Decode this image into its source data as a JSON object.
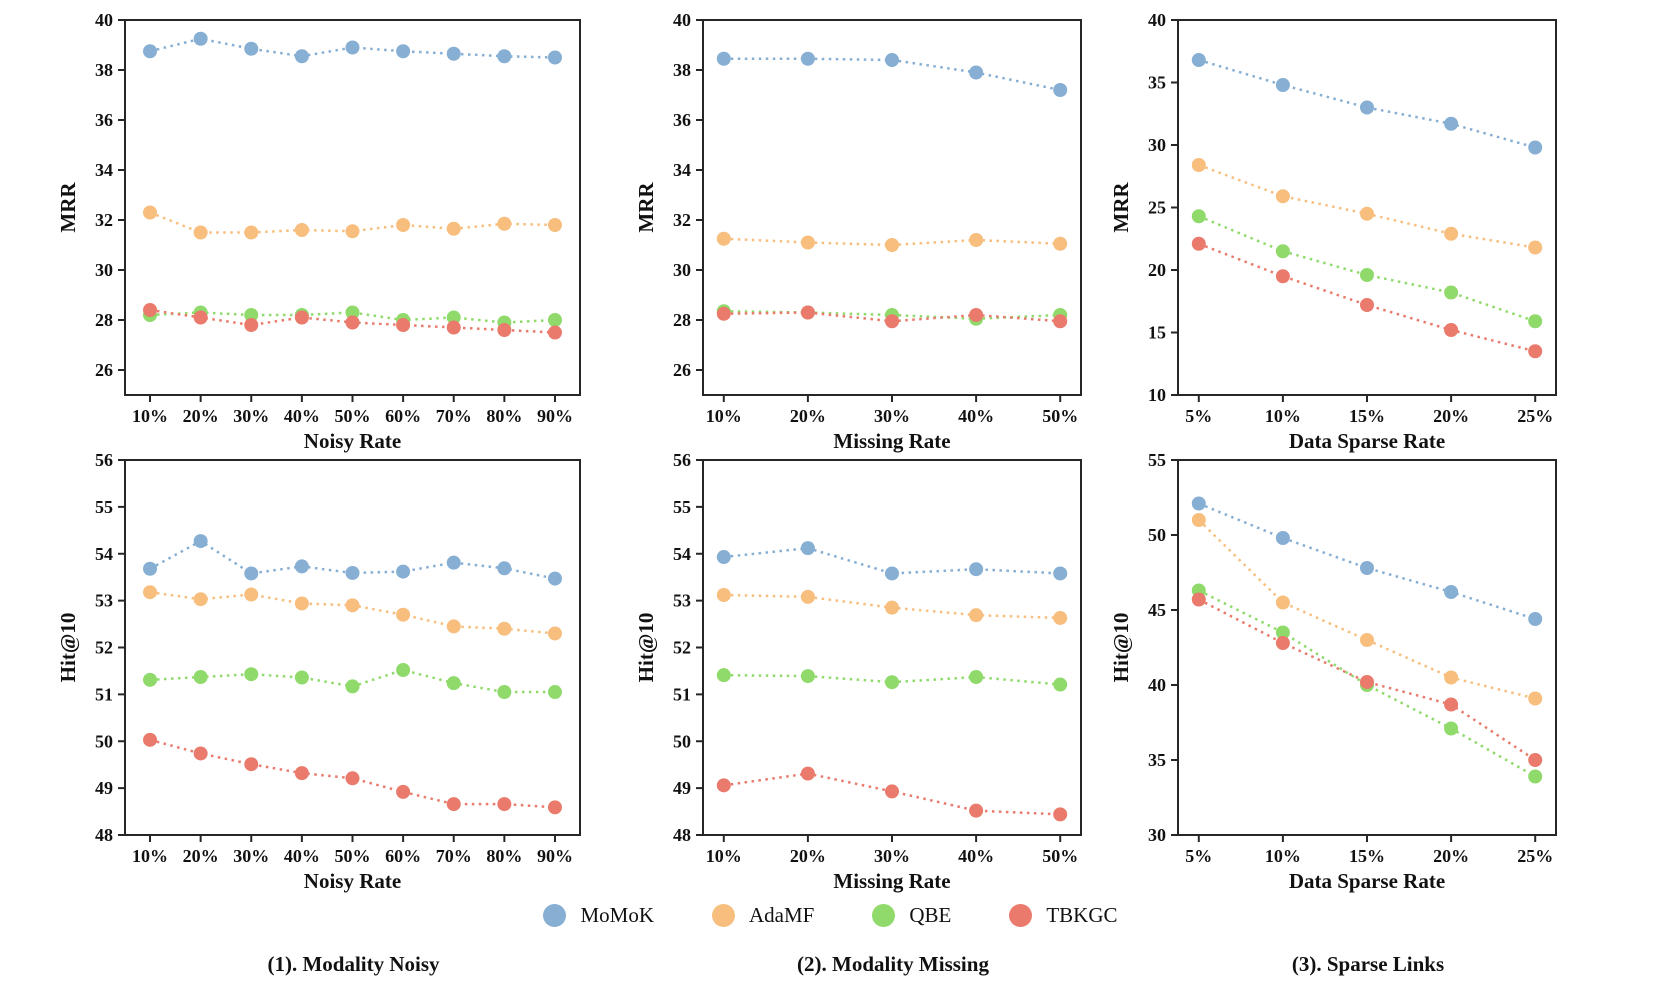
{
  "colors": {
    "MoMoK": "#87AED3",
    "AdaMF": "#F7BE7E",
    "QBE": "#8FDA6B",
    "TBKGC": "#E97A6C"
  },
  "legend": {
    "items": [
      {
        "label": "MoMoK"
      },
      {
        "label": "AdaMF"
      },
      {
        "label": "QBE"
      },
      {
        "label": "TBKGC"
      }
    ]
  },
  "captions": [
    "(1). Modality Noisy",
    "(2). Modality Missing",
    "(3). Sparse Links"
  ],
  "chart_data": [
    {
      "type": "line",
      "xlabel": "Noisy Rate",
      "ylabel": "MRR",
      "x": [
        "10%",
        "20%",
        "30%",
        "40%",
        "50%",
        "60%",
        "70%",
        "80%",
        "90%"
      ],
      "ylim": [
        25,
        40
      ],
      "yticks": [
        26,
        28,
        30,
        32,
        34,
        36,
        38,
        40
      ],
      "grid": false,
      "series": [
        {
          "name": "MoMoK",
          "values": [
            38.75,
            39.25,
            38.85,
            38.55,
            38.9,
            38.75,
            38.65,
            38.55,
            38.5
          ]
        },
        {
          "name": "AdaMF",
          "values": [
            32.3,
            31.5,
            31.5,
            31.6,
            31.55,
            31.8,
            31.65,
            31.85,
            31.8
          ]
        },
        {
          "name": "QBE",
          "values": [
            28.2,
            28.3,
            28.2,
            28.2,
            28.3,
            28.0,
            28.1,
            27.9,
            28.0
          ]
        },
        {
          "name": "TBKGC",
          "values": [
            28.4,
            28.1,
            27.8,
            28.1,
            27.9,
            27.8,
            27.7,
            27.6,
            27.5
          ]
        }
      ]
    },
    {
      "type": "line",
      "xlabel": "Missing Rate",
      "ylabel": "MRR",
      "x": [
        "10%",
        "20%",
        "30%",
        "40%",
        "50%"
      ],
      "ylim": [
        25,
        40
      ],
      "yticks": [
        26,
        28,
        30,
        32,
        34,
        36,
        38,
        40
      ],
      "grid": false,
      "series": [
        {
          "name": "MoMoK",
          "values": [
            38.45,
            38.45,
            38.4,
            37.9,
            37.2
          ]
        },
        {
          "name": "AdaMF",
          "values": [
            31.25,
            31.1,
            31.0,
            31.2,
            31.05
          ]
        },
        {
          "name": "QBE",
          "values": [
            28.35,
            28.3,
            28.2,
            28.05,
            28.2
          ]
        },
        {
          "name": "TBKGC",
          "values": [
            28.25,
            28.3,
            27.95,
            28.2,
            27.95
          ]
        }
      ]
    },
    {
      "type": "line",
      "xlabel": "Data Sparse Rate",
      "ylabel": "MRR",
      "x": [
        "5%",
        "10%",
        "15%",
        "20%",
        "25%"
      ],
      "ylim": [
        10,
        40
      ],
      "yticks": [
        10,
        15,
        20,
        25,
        30,
        35,
        40
      ],
      "grid": false,
      "series": [
        {
          "name": "MoMoK",
          "values": [
            36.8,
            34.8,
            33.0,
            31.7,
            29.8
          ]
        },
        {
          "name": "AdaMF",
          "values": [
            28.4,
            25.9,
            24.5,
            22.9,
            21.8
          ]
        },
        {
          "name": "QBE",
          "values": [
            24.3,
            21.5,
            19.6,
            18.2,
            15.9
          ]
        },
        {
          "name": "TBKGC",
          "values": [
            22.1,
            19.5,
            17.2,
            15.2,
            13.5
          ]
        }
      ]
    },
    {
      "type": "line",
      "xlabel": "Noisy Rate",
      "ylabel": "Hit@10",
      "x": [
        "10%",
        "20%",
        "30%",
        "40%",
        "50%",
        "60%",
        "70%",
        "80%",
        "90%"
      ],
      "ylim": [
        48,
        56
      ],
      "yticks": [
        48,
        49,
        50,
        51,
        52,
        53,
        54,
        55,
        56
      ],
      "grid": false,
      "series": [
        {
          "name": "MoMoK",
          "values": [
            53.68,
            54.27,
            53.58,
            53.73,
            53.59,
            53.62,
            53.81,
            53.69,
            53.47
          ]
        },
        {
          "name": "AdaMF",
          "values": [
            53.18,
            53.03,
            53.13,
            52.94,
            52.9,
            52.7,
            52.45,
            52.4,
            52.3
          ]
        },
        {
          "name": "QBE",
          "values": [
            51.31,
            51.37,
            51.43,
            51.36,
            51.17,
            51.52,
            51.24,
            51.05,
            51.05
          ]
        },
        {
          "name": "TBKGC",
          "values": [
            50.03,
            49.74,
            49.51,
            49.32,
            49.21,
            48.92,
            48.66,
            48.66,
            48.59
          ]
        }
      ]
    },
    {
      "type": "line",
      "xlabel": "Missing Rate",
      "ylabel": "Hit@10",
      "x": [
        "10%",
        "20%",
        "30%",
        "40%",
        "50%"
      ],
      "ylim": [
        48,
        56
      ],
      "yticks": [
        48,
        49,
        50,
        51,
        52,
        53,
        54,
        55,
        56
      ],
      "grid": false,
      "series": [
        {
          "name": "MoMoK",
          "values": [
            53.93,
            54.12,
            53.58,
            53.67,
            53.58
          ]
        },
        {
          "name": "AdaMF",
          "values": [
            53.12,
            53.08,
            52.85,
            52.69,
            52.63
          ]
        },
        {
          "name": "QBE",
          "values": [
            51.41,
            51.39,
            51.26,
            51.37,
            51.21
          ]
        },
        {
          "name": "TBKGC",
          "values": [
            49.06,
            49.31,
            48.93,
            48.52,
            48.44
          ]
        }
      ]
    },
    {
      "type": "line",
      "xlabel": "Data Sparse Rate",
      "ylabel": "Hit@10",
      "x": [
        "5%",
        "10%",
        "15%",
        "20%",
        "25%"
      ],
      "ylim": [
        30,
        55
      ],
      "yticks": [
        30,
        35,
        40,
        45,
        50,
        55
      ],
      "grid": false,
      "series": [
        {
          "name": "MoMoK",
          "values": [
            52.1,
            49.8,
            47.8,
            46.2,
            44.4
          ]
        },
        {
          "name": "AdaMF",
          "values": [
            51.0,
            45.5,
            43.0,
            40.5,
            39.1
          ]
        },
        {
          "name": "QBE",
          "values": [
            46.3,
            43.5,
            40.0,
            37.1,
            33.9
          ]
        },
        {
          "name": "TBKGC",
          "values": [
            45.7,
            42.8,
            40.2,
            38.7,
            35.0
          ]
        }
      ]
    }
  ]
}
